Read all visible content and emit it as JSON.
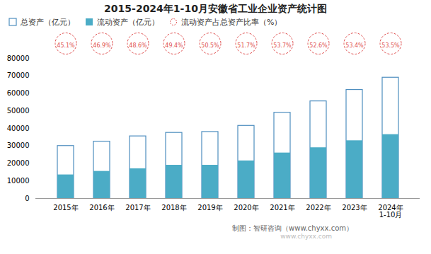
{
  "chart_data": {
    "type": "bar",
    "title": "2015-2024年1-10月安徽省工业企业资产统计图",
    "categories": [
      "2015年",
      "2016年",
      "2017年",
      "2018年",
      "2019年",
      "2020年",
      "2021年",
      "2022年",
      "2023年",
      "2024年"
    ],
    "series": [
      {
        "name": "总资产（亿元）",
        "type": "bar",
        "color": "#4E8EBF",
        "values": [
          30000,
          32500,
          35500,
          37500,
          38000,
          41500,
          49000,
          55500,
          62000,
          69000
        ]
      },
      {
        "name": "流动资产（亿元）",
        "type": "bar",
        "color": "#4BACC6",
        "values": [
          13500,
          15500,
          17000,
          19000,
          19000,
          21500,
          26000,
          29000,
          33000,
          36500
        ]
      },
      {
        "name": "流动资产占总资产比率（%）",
        "type": "scatter",
        "marker": "circle",
        "line_style": "dashed",
        "color": "#E05252",
        "values": [
          45.1,
          46.9,
          48.6,
          49.4,
          50.5,
          51.7,
          53.7,
          52.6,
          53.4,
          53.5
        ],
        "value_labels": [
          "45.1%",
          "46.9%",
          "48.6%",
          "49.4%",
          "50.5%",
          "51.7%",
          "53.7%",
          "52.6%",
          "53.4%",
          "53.5%"
        ]
      }
    ],
    "ylim": [
      0,
      80000
    ],
    "yticks": [
      0,
      10000,
      20000,
      30000,
      40000,
      50000,
      60000,
      70000,
      80000
    ],
    "grid": false,
    "legend": "upper left",
    "data_labels": true,
    "annotations": [
      {
        "text": "1-10月",
        "x": "2024年"
      },
      {
        "text": "制图：智研咨询（www.chyxx.com）"
      },
      {
        "text": "www.chyxx.com"
      }
    ]
  }
}
